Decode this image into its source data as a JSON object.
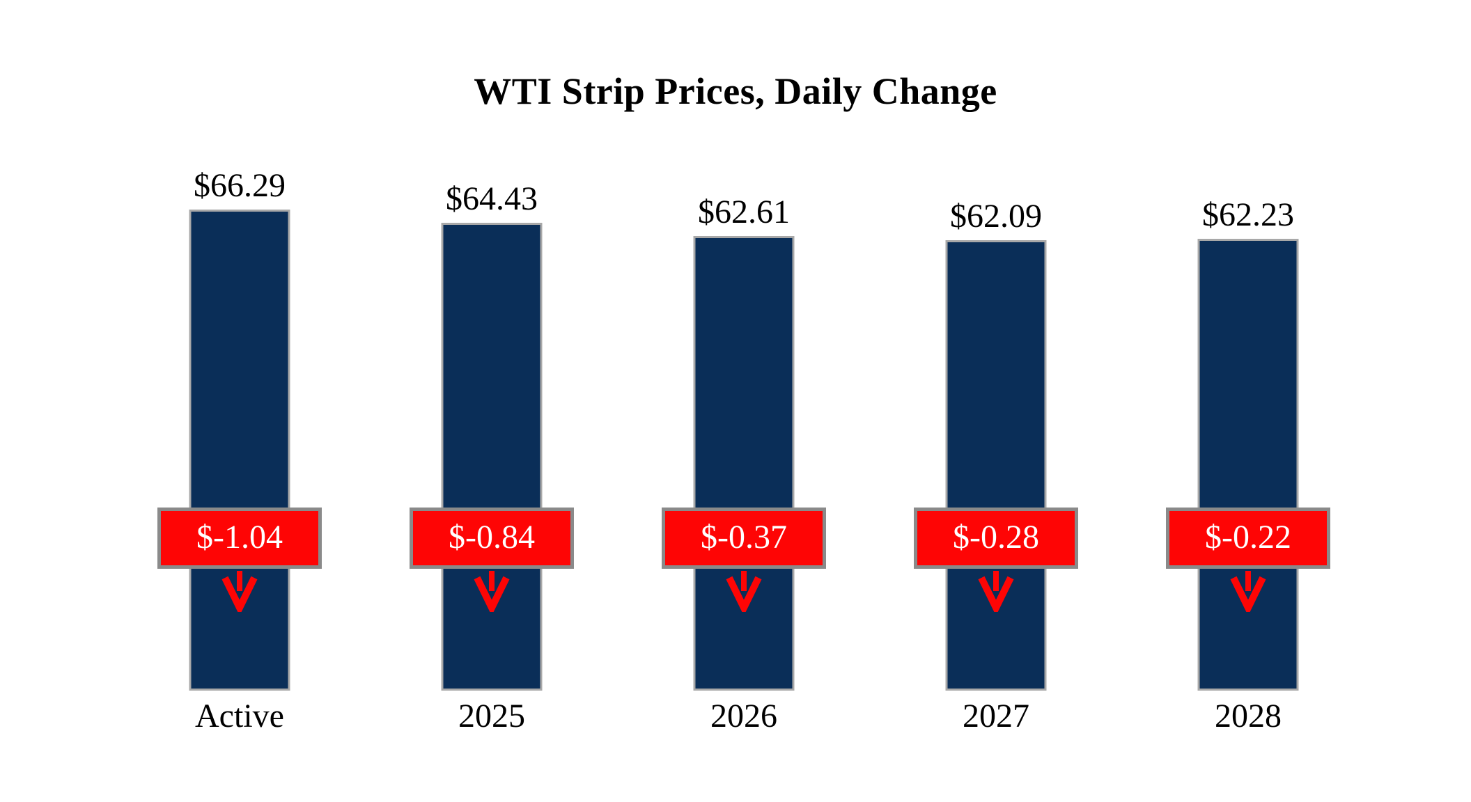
{
  "chart_data": {
    "type": "bar",
    "title": "WTI Strip Prices, Daily Change",
    "categories": [
      "Active",
      "2025",
      "2026",
      "2027",
      "2028"
    ],
    "series": [
      {
        "name": "strip_price",
        "values": [
          66.29,
          64.43,
          62.61,
          62.09,
          62.23
        ]
      },
      {
        "name": "daily_change",
        "values": [
          -1.04,
          -0.84,
          -0.37,
          -0.28,
          -0.22
        ]
      }
    ],
    "ylim": [
      0,
      66.29
    ],
    "grid": false,
    "legend": "none",
    "axes_visible": false
  },
  "bars": [
    {
      "category": "Active",
      "price_label": "$66.29",
      "change_label": "$-1.04"
    },
    {
      "category": "2025",
      "price_label": "$64.43",
      "change_label": "$-0.84"
    },
    {
      "category": "2026",
      "price_label": "$62.61",
      "change_label": "$-0.37"
    },
    {
      "category": "2027",
      "price_label": "$62.09",
      "change_label": "$-0.28"
    },
    {
      "category": "2028",
      "price_label": "$62.23",
      "change_label": "$-0.22"
    }
  ],
  "colors": {
    "background": "#ffffff",
    "text": "#000000",
    "bar_fill": "#0a2e58",
    "bar_border": "#a8a8a8",
    "badge_fill": "#fe0505",
    "badge_border": "#8a8a8a",
    "badge_text": "#ffffff",
    "arrow": "#fe0505"
  }
}
